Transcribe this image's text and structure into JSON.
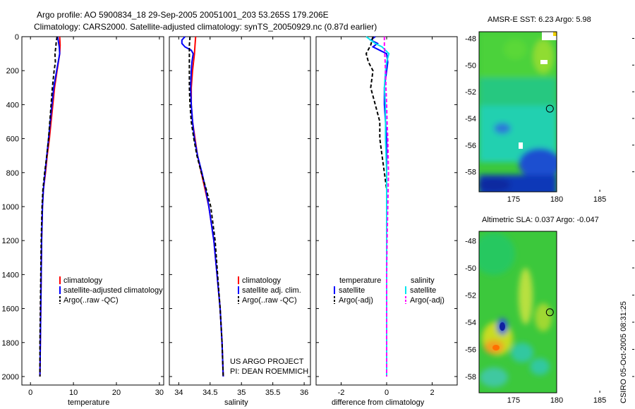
{
  "header": {
    "line1": "Argo profile: AO 5900834_18 29-Sep-2005 20051001_203 53.265S 179.206E",
    "line2": "Climatology: CARS2000. Satellite-adjusted climatology: synTS_20050929.nc (0.87d earlier)"
  },
  "colors": {
    "climatology": "#ff0000",
    "satellite": "#0000ff",
    "argo": "#000000",
    "sal_satellite": "#00e5ee",
    "sal_argo": "#ff00ff"
  },
  "chart_data": [
    {
      "type": "line",
      "name": "temperature-profile",
      "xlabel": "temperature",
      "ylabel": "",
      "xlim": [
        -2,
        31
      ],
      "ylim": [
        2050,
        0
      ],
      "xticks": [
        0,
        10,
        20,
        30
      ],
      "yticks": [
        0,
        200,
        400,
        600,
        800,
        1000,
        1200,
        1400,
        1600,
        1800,
        2000
      ],
      "legend": [
        "climatology",
        "satellite-adjusted climatology",
        "Argo(..raw -QC)"
      ],
      "series": [
        {
          "name": "climatology",
          "color": "#ff0000",
          "dash": "",
          "depth": [
            0,
            50,
            100,
            200,
            300,
            400,
            500,
            600,
            700,
            800,
            900,
            1000,
            1200,
            1400,
            1600,
            1800,
            2000
          ],
          "values": [
            6.8,
            6.9,
            6.8,
            6.2,
            5.6,
            5.2,
            4.8,
            4.4,
            3.9,
            3.5,
            3.0,
            2.8,
            2.6,
            2.5,
            2.4,
            2.3,
            2.2
          ]
        },
        {
          "name": "satellite-adjusted climatology",
          "color": "#0000ff",
          "dash": "",
          "depth": [
            0,
            30,
            60,
            100,
            200,
            300,
            400,
            500,
            600,
            700,
            800,
            900,
            1000,
            1200,
            1400,
            1600,
            1800,
            2000
          ],
          "values": [
            6.3,
            6.5,
            6.7,
            6.8,
            6.1,
            5.4,
            5.0,
            4.6,
            4.2,
            3.8,
            3.4,
            3.0,
            2.8,
            2.6,
            2.5,
            2.4,
            2.3,
            2.2
          ]
        },
        {
          "name": "Argo(..raw -QC)",
          "color": "#000000",
          "dash": "5,3",
          "depth": [
            0,
            30,
            60,
            100,
            150,
            200,
            300,
            400,
            500,
            600,
            700,
            800,
            900,
            1000,
            1200,
            1400,
            1600,
            1800,
            2000
          ],
          "values": [
            6.2,
            6.0,
            5.9,
            5.7,
            5.8,
            5.5,
            5.1,
            4.8,
            4.5,
            4.2,
            3.8,
            3.3,
            2.9,
            2.7,
            2.5,
            2.4,
            2.3,
            2.2,
            2.2
          ]
        }
      ]
    },
    {
      "type": "line",
      "name": "salinity-profile",
      "xlabel": "salinity",
      "ylabel": "",
      "xlim": [
        33.85,
        36.1
      ],
      "ylim": [
        2050,
        0
      ],
      "xticks": [
        34,
        34.5,
        35,
        35.5,
        36
      ],
      "yticks": [
        0,
        200,
        400,
        600,
        800,
        1000,
        1200,
        1400,
        1600,
        1800,
        2000
      ],
      "legend": [
        "climatology",
        "satellite adj. clim.",
        "Argo(..raw -QC)"
      ],
      "series": [
        {
          "name": "climatology",
          "color": "#ff0000",
          "dash": "",
          "depth": [
            0,
            50,
            100,
            200,
            300,
            400,
            500,
            600,
            700,
            800,
            900,
            1000,
            1200,
            1400,
            1600,
            1800,
            2000
          ],
          "values": [
            34.27,
            34.26,
            34.25,
            34.22,
            34.2,
            34.2,
            34.22,
            34.26,
            34.3,
            34.36,
            34.42,
            34.48,
            34.56,
            34.61,
            34.66,
            34.69,
            34.71
          ]
        },
        {
          "name": "satellite adj. clim.",
          "color": "#0000ff",
          "dash": "",
          "depth": [
            0,
            20,
            40,
            60,
            80,
            100,
            150,
            200,
            300,
            400,
            500,
            600,
            700,
            800,
            900,
            1000,
            1200,
            1400,
            1600,
            1800,
            2000
          ],
          "values": [
            34.1,
            34.05,
            34.05,
            34.1,
            34.2,
            34.23,
            34.21,
            34.2,
            34.19,
            34.2,
            34.22,
            34.25,
            34.3,
            34.37,
            34.43,
            34.48,
            34.56,
            34.61,
            34.66,
            34.69,
            34.71
          ]
        },
        {
          "name": "Argo(..raw -QC)",
          "color": "#000000",
          "dash": "5,3",
          "depth": [
            0,
            50,
            100,
            200,
            300,
            400,
            500,
            600,
            700,
            800,
            900,
            1000,
            1200,
            1400,
            1600,
            1800,
            2000
          ],
          "values": [
            34.18,
            34.17,
            34.17,
            34.17,
            34.17,
            34.18,
            34.2,
            34.24,
            34.29,
            34.36,
            34.44,
            34.51,
            34.58,
            34.62,
            34.66,
            34.69,
            34.71
          ]
        }
      ]
    },
    {
      "type": "line",
      "name": "difference-profile",
      "xlabel": "difference from climatology",
      "ylabel": "",
      "xlim": [
        -3.1,
        3.1
      ],
      "ylim": [
        2050,
        0
      ],
      "xticks": [
        -2,
        0,
        2
      ],
      "yticks": [
        0,
        200,
        400,
        600,
        800,
        1000,
        1200,
        1400,
        1600,
        1800,
        2000
      ],
      "legend_headers": [
        "temperature",
        "salinity"
      ],
      "legend": [
        "satellite",
        "Argo(-adj)",
        "satellite",
        "Argo(-adj)"
      ],
      "series": [
        {
          "name": "temperature satellite",
          "color": "#0000ff",
          "dash": "",
          "depth": [
            0,
            20,
            40,
            60,
            80,
            100,
            150,
            200,
            300,
            400,
            500,
            600,
            800,
            1000,
            1200,
            1400,
            1600,
            1800,
            2000
          ],
          "values": [
            -0.5,
            -0.7,
            -0.4,
            -0.6,
            -0.3,
            0.0,
            0.05,
            0.0,
            -0.1,
            -0.1,
            -0.05,
            0.0,
            0.0,
            0.0,
            0.0,
            0.0,
            0.0,
            0.0,
            0.0
          ]
        },
        {
          "name": "temperature Argo(-adj)",
          "color": "#000000",
          "dash": "5,3",
          "depth": [
            0,
            50,
            100,
            150,
            200,
            300,
            400,
            500,
            600,
            700,
            800,
            900,
            1000,
            1200,
            1400,
            1600,
            1800,
            2000
          ],
          "values": [
            -0.6,
            -0.7,
            -0.9,
            -0.8,
            -0.6,
            -0.7,
            -0.5,
            -0.3,
            -0.3,
            -0.2,
            -0.1,
            0.0,
            0.0,
            0.0,
            0.0,
            0.0,
            0.0,
            0.0
          ]
        },
        {
          "name": "salinity satellite",
          "color": "#00e5ee",
          "dash": "",
          "depth": [
            0,
            20,
            40,
            60,
            100,
            150,
            200,
            300,
            400,
            500,
            600,
            800,
            1000,
            1200,
            1400,
            1600,
            1800,
            2000
          ],
          "values": [
            -0.9,
            -0.7,
            -0.5,
            -0.2,
            0.1,
            0.0,
            -0.05,
            -0.1,
            -0.05,
            -0.05,
            -0.05,
            0.0,
            0.0,
            0.0,
            0.0,
            0.0,
            0.0,
            0.0
          ]
        },
        {
          "name": "salinity Argo(-adj)",
          "color": "#ff00ff",
          "dash": "5,3",
          "depth": [
            0,
            50,
            100,
            200,
            300,
            400,
            500,
            600,
            800,
            1000,
            1200,
            1400,
            1600,
            1800,
            2000
          ],
          "values": [
            -0.1,
            -0.1,
            -0.08,
            -0.05,
            -0.03,
            0.0,
            0.02,
            0.05,
            0.08,
            0.05,
            0.02,
            0.0,
            0.0,
            0.0,
            0.0
          ]
        }
      ]
    },
    {
      "type": "heatmap",
      "name": "amsr-sst-map",
      "title": "AMSR-E SST: 6.23 Argo: 5.98",
      "xlim": [
        171,
        189
      ],
      "ylim": [
        -59.5,
        -47.5
      ],
      "xticks": [
        175,
        180,
        185
      ],
      "yticks": [
        -48,
        -50,
        -52,
        -54,
        -56,
        -58
      ],
      "float_position": [
        179.206,
        -53.265
      ]
    },
    {
      "type": "heatmap",
      "name": "altimetric-sla-map",
      "title": "Altimetric SLA: 0.037 Argo: -0.047",
      "xlim": [
        171,
        189
      ],
      "ylim": [
        -59.2,
        -47.3
      ],
      "xticks": [
        175,
        180,
        185
      ],
      "yticks": [
        -48,
        -50,
        -52,
        -54,
        -56,
        -58
      ],
      "float_position": [
        179.206,
        -53.265
      ]
    }
  ],
  "annotations": {
    "project": "US ARGO PROJECT",
    "pi": "PI: DEAN ROEMMICH",
    "csiro_stamp": "CSIRO 05-Oct-2005 08:31:25"
  }
}
